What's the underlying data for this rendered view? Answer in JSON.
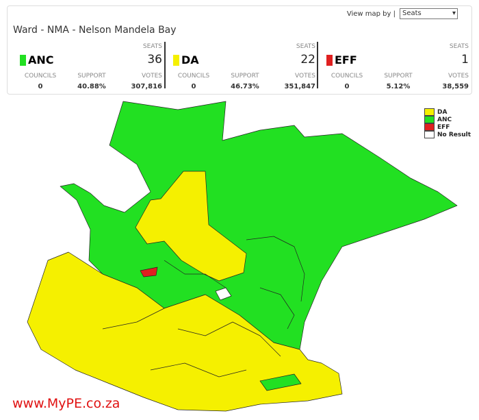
{
  "header": {
    "view_label": "View map by |",
    "view_select": "Seats",
    "title": "Ward - NMA - Nelson Mandela Bay"
  },
  "parties": [
    {
      "name": "ANC",
      "color": "#22e022",
      "seats_label": "SEATS",
      "seats": 36,
      "councils_label": "COUNCILS",
      "councils": 0,
      "support_label": "SUPPORT",
      "support": "40.88%",
      "votes_label": "VOTES",
      "votes": "307,816"
    },
    {
      "name": "DA",
      "color": "#f5f000",
      "seats_label": "SEATS",
      "seats": 22,
      "councils_label": "COUNCILS",
      "councils": 0,
      "support_label": "SUPPORT",
      "support": "46.73%",
      "votes_label": "VOTES",
      "votes": "351,847"
    },
    {
      "name": "EFF",
      "color": "#e02020",
      "seats_label": "SEATS",
      "seats": 1,
      "councils_label": "COUNCILS",
      "councils": 0,
      "support_label": "SUPPORT",
      "support": "5.12%",
      "votes_label": "VOTES",
      "votes": "38,559"
    }
  ],
  "legend": [
    {
      "label": "DA",
      "color": "#f5f000"
    },
    {
      "label": "ANC",
      "color": "#22e022"
    },
    {
      "label": "EFF",
      "color": "#e02020"
    },
    {
      "label": "No Result",
      "color": "#ffffff"
    }
  ],
  "watermark": "www.MyPE.co.za"
}
